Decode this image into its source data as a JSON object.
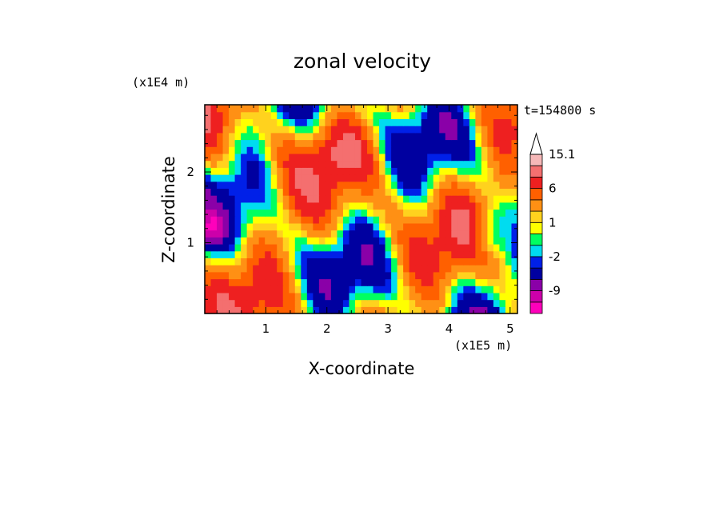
{
  "chart_data": {
    "type": "heatmap",
    "title": "zonal velocity",
    "xlabel": "X-coordinate",
    "ylabel": "Z-coordinate",
    "x_scale_label": "(x1E5 m)",
    "y_scale_label": "(x1E4 m)",
    "time_label": "t=154800 s",
    "xlim": [
      0,
      5.12
    ],
    "ylim": [
      0,
      2.95
    ],
    "x_ticks": [
      "1",
      "2",
      "3",
      "4",
      "5"
    ],
    "y_ticks": [
      "1",
      "2"
    ],
    "colorbar": {
      "orientation": "vertical",
      "labels": [
        "15.1",
        "6",
        "1",
        "-2",
        "-9"
      ],
      "extend_max": true,
      "colors": [
        "#ff00bb",
        "#cc00aa",
        "#8a00a8",
        "#0000a0",
        "#0020e8",
        "#00dcf0",
        "#00ff60",
        "#ffff00",
        "#ffd21e",
        "#ff9014",
        "#ff6000",
        "#ee2020",
        "#f46f6f",
        "#f6b8b8"
      ],
      "bounds": [
        -15,
        -12,
        -9,
        -6,
        -3,
        -2,
        -1,
        0,
        1,
        2,
        4,
        6,
        9,
        12,
        15.1
      ]
    },
    "field": {
      "nx": 52,
      "nz": 30,
      "description": "2-D field of zonal velocity u(x,z), values in colorbar units"
    },
    "grid": false,
    "legend": "right"
  }
}
